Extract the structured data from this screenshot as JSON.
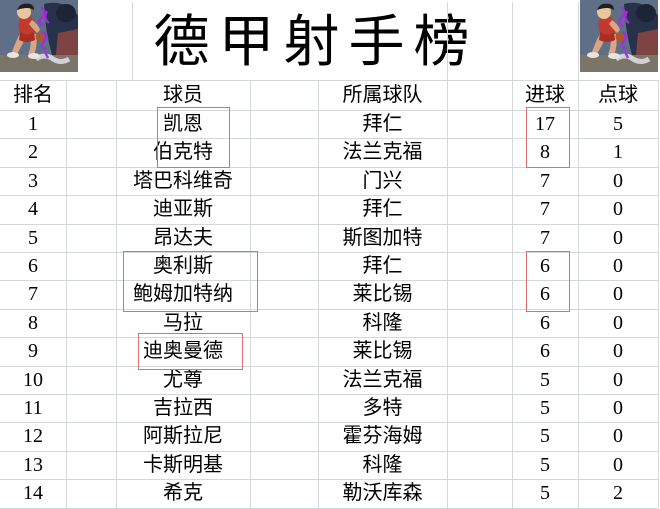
{
  "title": "德甲射手榜",
  "chart_data": {
    "type": "table",
    "title": "德甲射手榜",
    "columns": [
      "排名",
      "球员",
      "所属球队",
      "进球",
      "点球"
    ],
    "rows": [
      [
        "1",
        "凯恩",
        "拜仁",
        "17",
        "5"
      ],
      [
        "2",
        "伯克特",
        "法兰克福",
        "8",
        "1"
      ],
      [
        "3",
        "塔巴科维奇",
        "门兴",
        "7",
        "0"
      ],
      [
        "4",
        "迪亚斯",
        "拜仁",
        "7",
        "0"
      ],
      [
        "5",
        "昂达夫",
        "斯图加特",
        "7",
        "0"
      ],
      [
        "6",
        "奥利斯",
        "拜仁",
        "6",
        "0"
      ],
      [
        "7",
        "鲍姆加特纳",
        "莱比锡",
        "6",
        "0"
      ],
      [
        "8",
        "马拉",
        "科隆",
        "6",
        "0"
      ],
      [
        "9",
        "迪奥曼德",
        "莱比锡",
        "6",
        "0"
      ],
      [
        "10",
        "尤尊",
        "法兰克福",
        "5",
        "0"
      ],
      [
        "11",
        "吉拉西",
        "多特",
        "5",
        "0"
      ],
      [
        "12",
        "阿斯拉尼",
        "霍芬海姆",
        "5",
        "0"
      ],
      [
        "13",
        "卡斯明基",
        "科隆",
        "5",
        "0"
      ],
      [
        "14",
        "希克",
        "勒沃库森",
        "5",
        "2"
      ]
    ]
  },
  "highlights": [
    {
      "column": "球员",
      "rows": [
        1,
        2
      ]
    },
    {
      "column": "进球",
      "rows": [
        1,
        2
      ]
    },
    {
      "column": "球员",
      "rows": [
        6,
        7
      ]
    },
    {
      "column": "进球",
      "rows": [
        6,
        7
      ]
    },
    {
      "column": "球员",
      "rows": [
        9,
        9
      ]
    }
  ],
  "highlight_color": "#dd6f6f",
  "images": {
    "top_left": "slam-dunk-basketball-player-illustration",
    "top_right": "slam-dunk-basketball-player-illustration"
  }
}
